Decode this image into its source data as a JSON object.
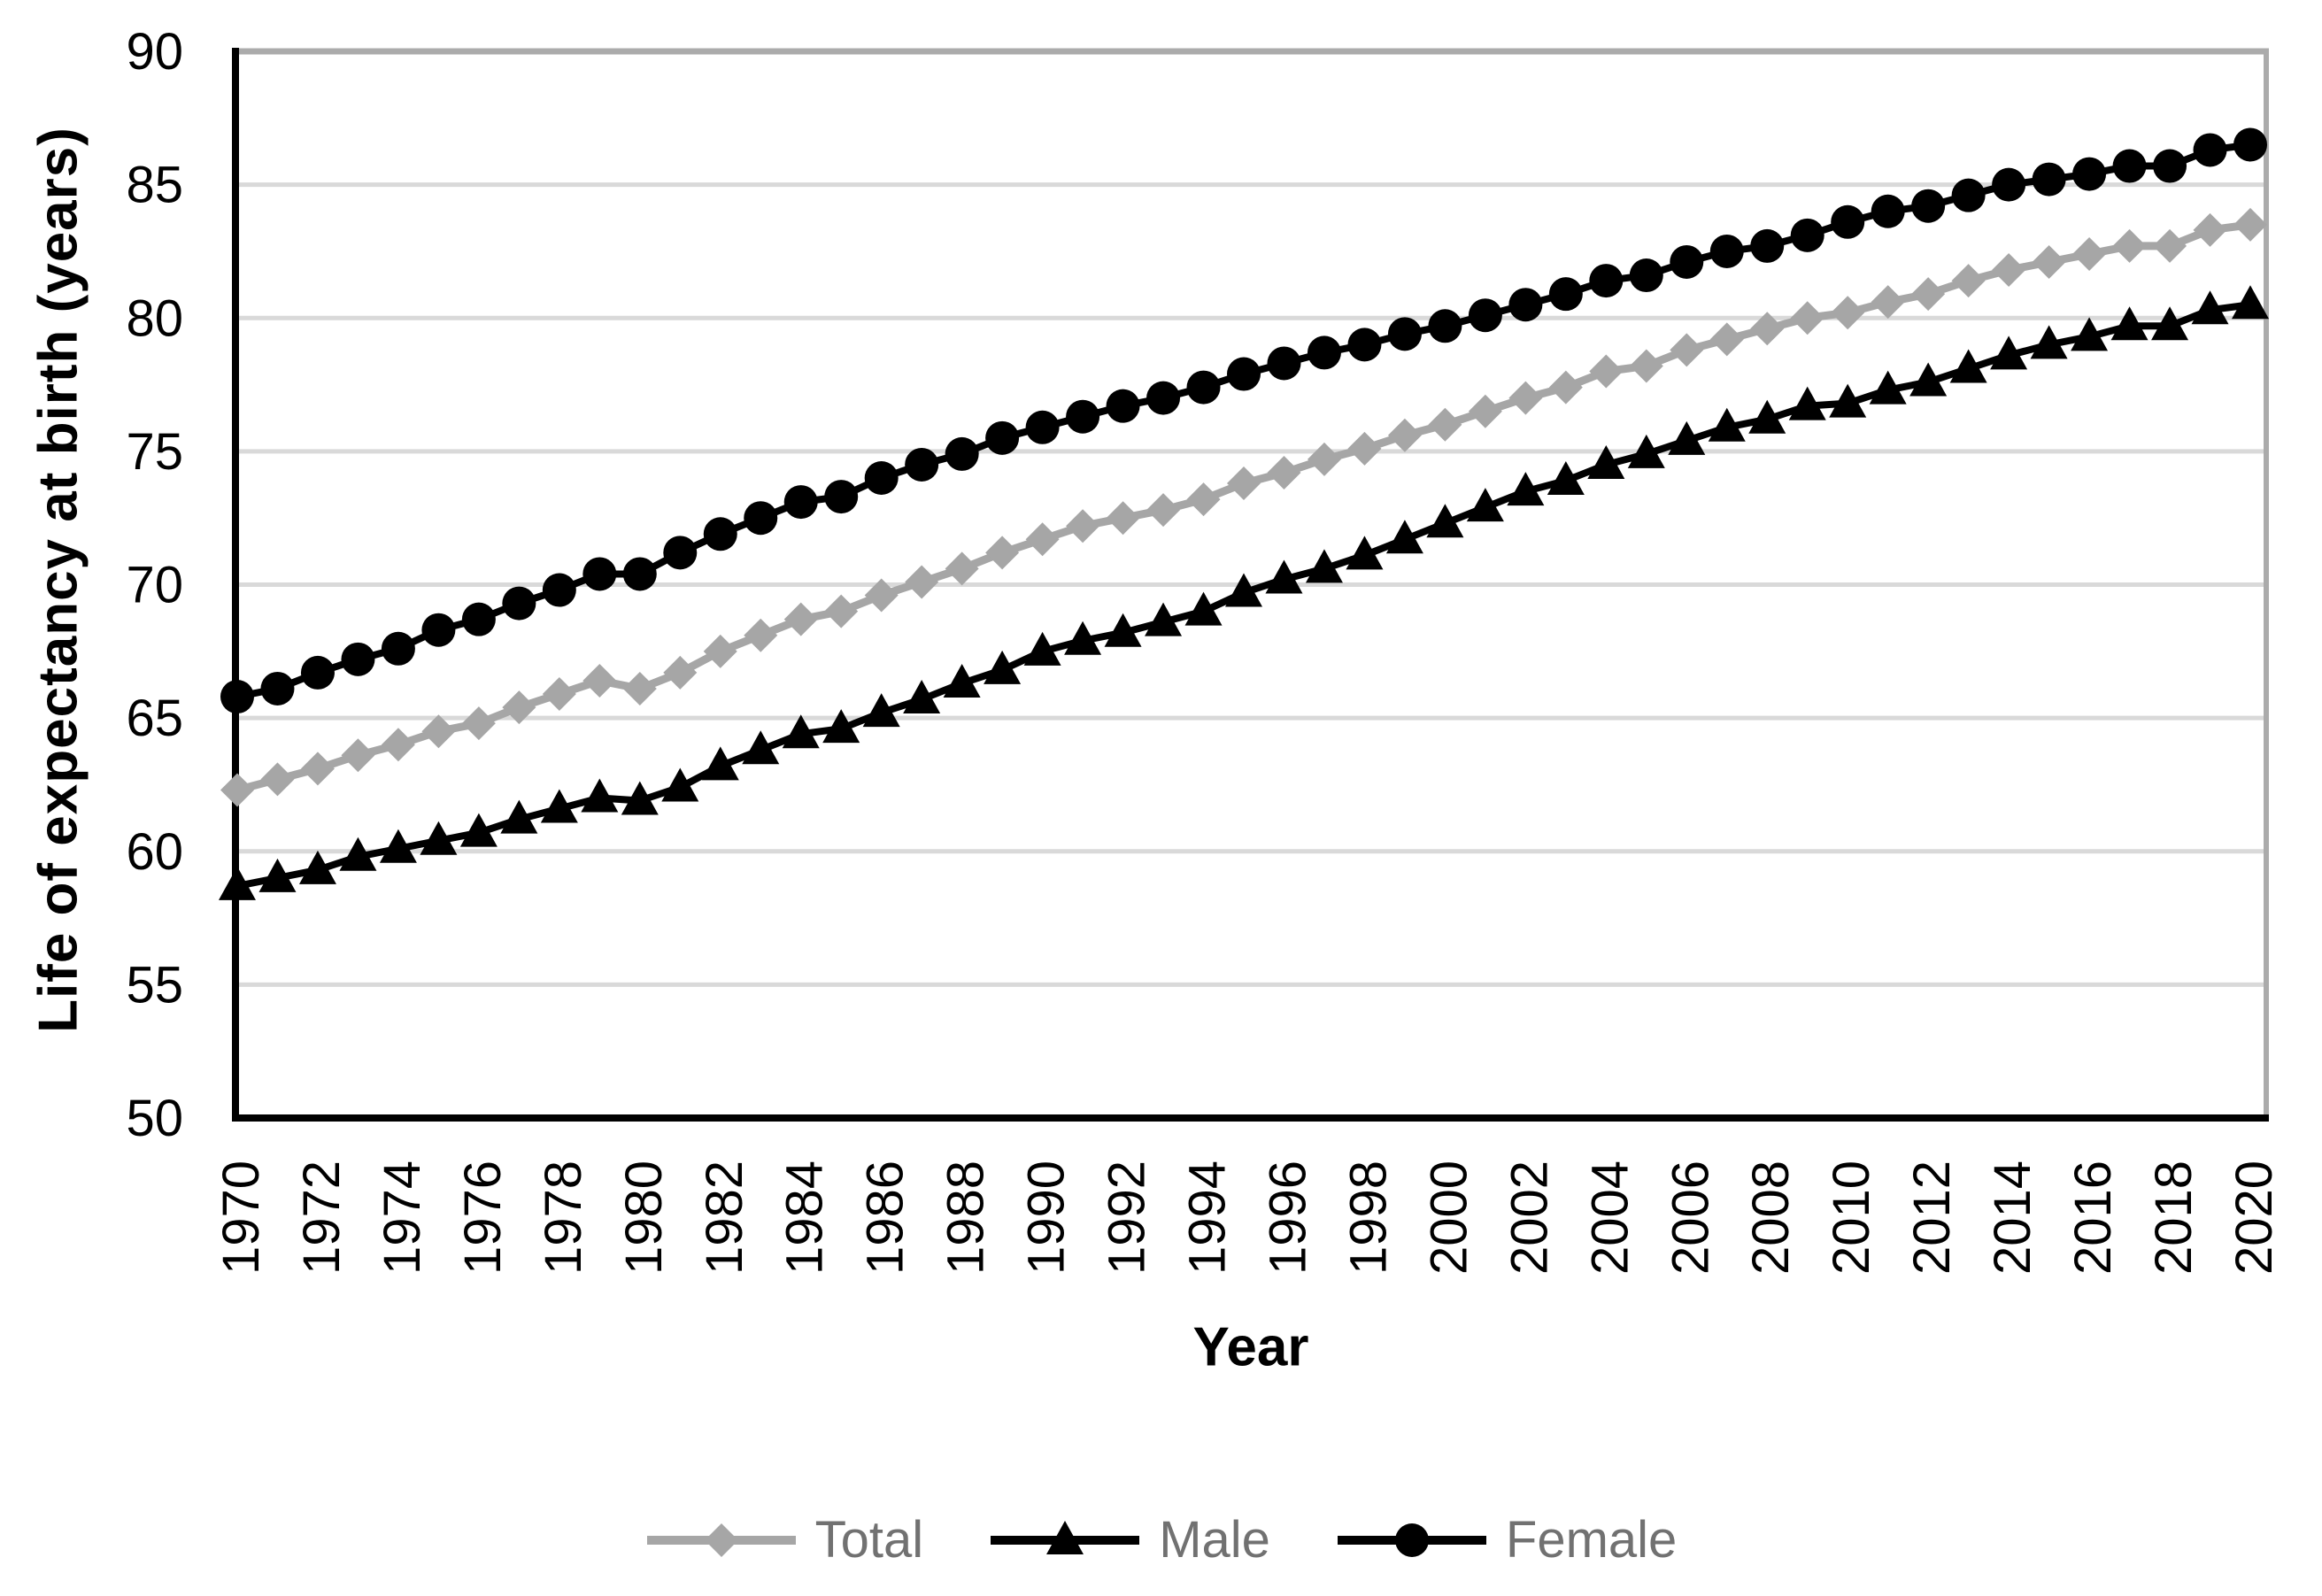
{
  "chart_data": {
    "type": "line",
    "title": "",
    "xlabel": "Year",
    "ylabel": "Life of expectancy at birth (years)",
    "ylim": [
      50,
      90
    ],
    "grid": "horizontal",
    "legend_position": "bottom",
    "y_ticks": [
      50,
      55,
      60,
      65,
      70,
      75,
      80,
      85,
      90
    ],
    "x_ticks": [
      1970,
      1972,
      1974,
      1976,
      1978,
      1980,
      1982,
      1984,
      1986,
      1988,
      1990,
      1992,
      1994,
      1996,
      1998,
      2000,
      2002,
      2004,
      2006,
      2008,
      2010,
      2012,
      2014,
      2016,
      2018,
      2020
    ],
    "x": [
      1970,
      1971,
      1972,
      1973,
      1974,
      1975,
      1976,
      1977,
      1978,
      1979,
      1980,
      1981,
      1982,
      1983,
      1984,
      1985,
      1986,
      1987,
      1988,
      1989,
      1990,
      1991,
      1992,
      1993,
      1994,
      1995,
      1996,
      1997,
      1998,
      1999,
      2000,
      2001,
      2002,
      2003,
      2004,
      2005,
      2006,
      2007,
      2008,
      2009,
      2010,
      2011,
      2012,
      2013,
      2014,
      2015,
      2016,
      2017,
      2018,
      2019,
      2020
    ],
    "series": [
      {
        "name": "Total",
        "marker": "diamond",
        "color": "#A6A6A6",
        "line_width": 9,
        "values": [
          62.3,
          62.7,
          63.1,
          63.6,
          64.0,
          64.5,
          64.8,
          65.4,
          65.9,
          66.4,
          66.1,
          66.7,
          67.5,
          68.1,
          68.7,
          69.0,
          69.6,
          70.1,
          70.6,
          71.2,
          71.7,
          72.2,
          72.5,
          72.8,
          73.2,
          73.8,
          74.2,
          74.7,
          75.1,
          75.6,
          76.0,
          76.5,
          77.0,
          77.4,
          78.0,
          78.2,
          78.8,
          79.2,
          79.6,
          80.0,
          80.2,
          80.6,
          80.9,
          81.4,
          81.8,
          82.1,
          82.4,
          82.7,
          82.7,
          83.3,
          83.5
        ]
      },
      {
        "name": "Male",
        "marker": "triangle",
        "color": "#000000",
        "line_width": 8,
        "values": [
          58.7,
          59.0,
          59.3,
          59.8,
          60.1,
          60.4,
          60.7,
          61.2,
          61.6,
          62.0,
          61.9,
          62.4,
          63.2,
          63.8,
          64.4,
          64.6,
          65.2,
          65.7,
          66.3,
          66.8,
          67.5,
          67.9,
          68.2,
          68.6,
          69.0,
          69.7,
          70.2,
          70.6,
          71.1,
          71.7,
          72.3,
          72.9,
          73.5,
          73.9,
          74.5,
          74.9,
          75.4,
          75.9,
          76.2,
          76.7,
          76.8,
          77.3,
          77.6,
          78.1,
          78.6,
          79.0,
          79.3,
          79.7,
          79.7,
          80.3,
          80.5
        ]
      },
      {
        "name": "Female",
        "marker": "circle",
        "color": "#000000",
        "line_width": 8,
        "values": [
          65.8,
          66.1,
          66.7,
          67.2,
          67.6,
          68.3,
          68.7,
          69.3,
          69.8,
          70.4,
          70.4,
          71.2,
          71.9,
          72.5,
          73.1,
          73.3,
          74.0,
          74.5,
          74.9,
          75.5,
          75.9,
          76.3,
          76.7,
          77.0,
          77.4,
          77.9,
          78.3,
          78.7,
          79.0,
          79.4,
          79.7,
          80.1,
          80.5,
          80.9,
          81.4,
          81.6,
          82.1,
          82.5,
          82.7,
          83.1,
          83.6,
          84.0,
          84.2,
          84.6,
          85.0,
          85.2,
          85.4,
          85.7,
          85.7,
          86.3,
          86.5
        ]
      }
    ],
    "colors": {
      "gridline": "#D9D9D9",
      "plot_border": "#ABABAB",
      "axis": "#000000",
      "tick_text": "#000000",
      "legend_text": "#717171"
    }
  }
}
